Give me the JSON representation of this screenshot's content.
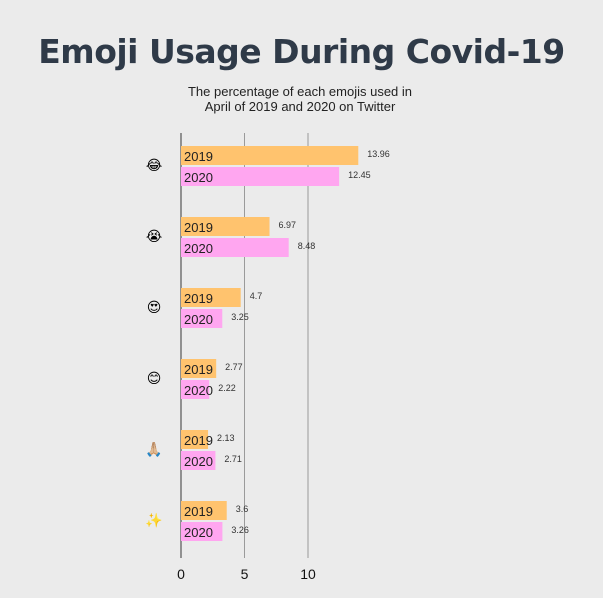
{
  "chart_data": {
    "type": "bar",
    "orientation": "horizontal",
    "title": "Emoji Usage During Covid-19",
    "subtitle_lines": [
      "The percentage of each emojis used in",
      "April of 2019 and 2020 on Twitter"
    ],
    "categories": [
      "😂",
      "😭",
      "😍",
      "😊",
      "🙏🏼",
      "✨"
    ],
    "series": [
      {
        "name": "2019",
        "color": "#ffc36e",
        "values": [
          13.96,
          6.97,
          4.7,
          2.77,
          2.13,
          3.6
        ]
      },
      {
        "name": "2020",
        "color": "#ffa6f0",
        "values": [
          12.45,
          8.48,
          3.25,
          2.22,
          2.71,
          3.26
        ]
      }
    ],
    "value_labels": [
      [
        "13.96",
        "6.97",
        "4.7",
        "2.77",
        "2.13",
        "3.6"
      ],
      [
        "12.45",
        "8.48",
        "3.25",
        "2.22",
        "2.71",
        "3.26"
      ]
    ],
    "xticks": [
      "0",
      "5",
      "10"
    ],
    "xtick_values": [
      0,
      5,
      10
    ],
    "xlim": [
      0,
      15
    ],
    "grid": "vertical gridlines at ticks",
    "legend": "none"
  }
}
